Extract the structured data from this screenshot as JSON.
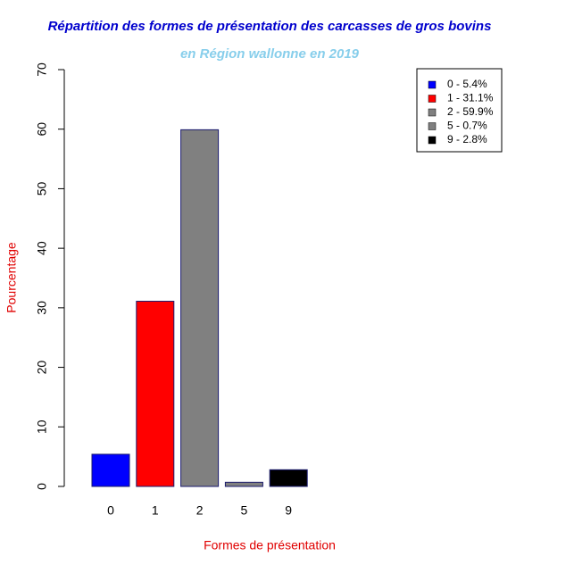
{
  "chart_data": {
    "type": "bar",
    "title": "Répartition des formes de présentation des carcasses de gros bovins",
    "subtitle": "en Région wallonne en 2019",
    "x_label": "Formes de présentation",
    "y_label": "Pourcentage",
    "categories": [
      "0",
      "1",
      "2",
      "5",
      "9"
    ],
    "values": [
      5.4,
      31.1,
      59.9,
      0.7,
      2.8
    ],
    "colors": [
      "#0000ff",
      "#ff0000",
      "#808080",
      "#808080",
      "#000000"
    ],
    "legend_labels": [
      "0 - 5.4%",
      "1 - 31.1%",
      "2 - 59.9%",
      "5 - 0.7%",
      "9 - 2.8%"
    ],
    "legend_position": "top-right",
    "ylim": [
      0,
      70
    ],
    "yticks": [
      0,
      10,
      20,
      30,
      40,
      50,
      60,
      70
    ]
  }
}
